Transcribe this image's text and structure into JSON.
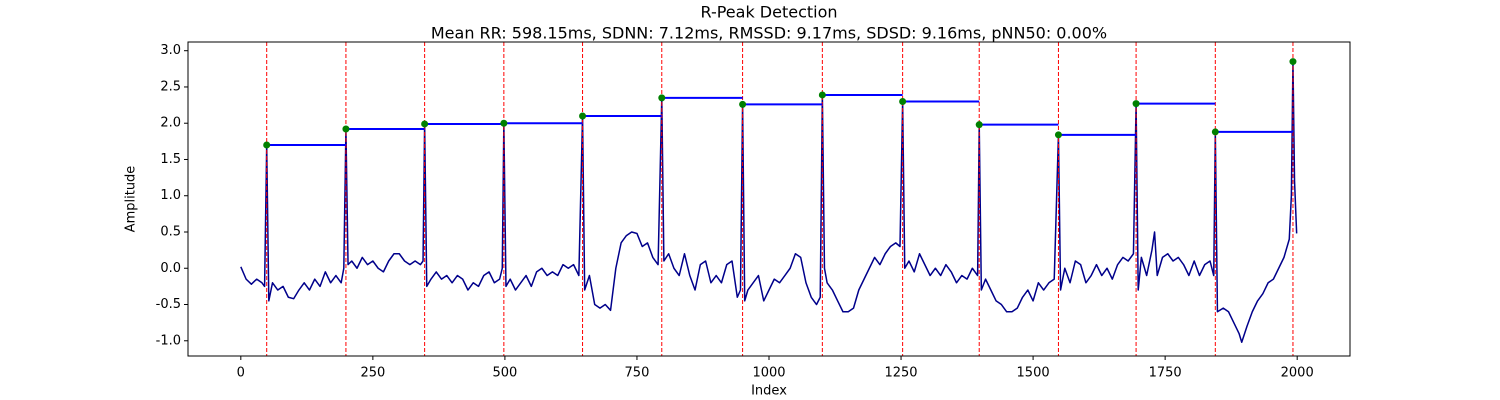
{
  "chart_data": {
    "type": "line",
    "title": "R-Peak Detection",
    "subtitle": "Mean RR: 598.15ms, SDNN: 7.12ms, RMSSD: 9.17ms, SDSD: 9.16ms, pNN50: 0.00%",
    "x_label": "Index",
    "y_label": "Amplitude",
    "xlim": [
      -100,
      2100
    ],
    "ylim": [
      -1.21,
      3.12
    ],
    "xticks": [
      0,
      250,
      500,
      750,
      1000,
      1250,
      1500,
      1750,
      2000
    ],
    "yticks": [
      {
        "value": -1,
        "label": "-1.0"
      },
      -0.5,
      {
        "value": 0,
        "label": "0.0"
      },
      0.5,
      {
        "value": 1,
        "label": "1.0"
      },
      1.5,
      {
        "value": 2,
        "label": "2.0"
      },
      2.5,
      {
        "value": 3,
        "label": "3.0"
      }
    ],
    "signal": {
      "color": "#00008b",
      "x": [
        0,
        10,
        20,
        30,
        40,
        45,
        49,
        53,
        60,
        70,
        80,
        90,
        100,
        110,
        120,
        130,
        140,
        150,
        160,
        170,
        180,
        190,
        195,
        199,
        203,
        210,
        220,
        230,
        240,
        250,
        260,
        270,
        280,
        290,
        300,
        310,
        320,
        330,
        340,
        345,
        348,
        352,
        360,
        370,
        380,
        390,
        400,
        410,
        420,
        430,
        440,
        450,
        460,
        470,
        480,
        490,
        495,
        498,
        502,
        510,
        520,
        530,
        540,
        550,
        560,
        570,
        580,
        590,
        600,
        610,
        620,
        630,
        640,
        647,
        651,
        660,
        670,
        680,
        690,
        700,
        710,
        720,
        730,
        740,
        750,
        760,
        770,
        780,
        790,
        797,
        801,
        810,
        820,
        830,
        840,
        850,
        860,
        870,
        880,
        890,
        900,
        910,
        920,
        930,
        940,
        946,
        950,
        954,
        960,
        970,
        980,
        990,
        1000,
        1010,
        1020,
        1030,
        1040,
        1050,
        1060,
        1070,
        1080,
        1090,
        1097,
        1101,
        1105,
        1110,
        1120,
        1130,
        1140,
        1150,
        1160,
        1170,
        1180,
        1190,
        1200,
        1210,
        1220,
        1230,
        1240,
        1248,
        1253,
        1257,
        1265,
        1275,
        1285,
        1295,
        1305,
        1315,
        1325,
        1335,
        1345,
        1355,
        1365,
        1375,
        1385,
        1395,
        1398,
        1402,
        1410,
        1420,
        1430,
        1440,
        1450,
        1460,
        1470,
        1480,
        1490,
        1500,
        1510,
        1520,
        1530,
        1540,
        1548,
        1552,
        1560,
        1570,
        1580,
        1590,
        1600,
        1610,
        1620,
        1630,
        1640,
        1650,
        1660,
        1670,
        1680,
        1690,
        1695,
        1699,
        1705,
        1715,
        1725,
        1730,
        1735,
        1745,
        1755,
        1765,
        1775,
        1785,
        1795,
        1805,
        1815,
        1825,
        1835,
        1842,
        1845,
        1849,
        1860,
        1870,
        1880,
        1890,
        1895,
        1905,
        1915,
        1925,
        1935,
        1945,
        1955,
        1965,
        1975,
        1985,
        1989,
        1992,
        1995,
        1999
      ],
      "values": [
        0.02,
        -0.15,
        -0.22,
        -0.15,
        -0.2,
        -0.25,
        1.7,
        -0.45,
        -0.2,
        -0.3,
        -0.25,
        -0.4,
        -0.42,
        -0.3,
        -0.2,
        -0.3,
        -0.15,
        -0.25,
        -0.05,
        -0.2,
        -0.1,
        -0.2,
        0.0,
        1.92,
        0.05,
        0.1,
        0.0,
        0.15,
        0.05,
        0.1,
        0.0,
        -0.05,
        0.1,
        0.2,
        0.2,
        0.1,
        0.05,
        0.1,
        0.05,
        0.1,
        1.99,
        -0.25,
        -0.15,
        -0.05,
        -0.15,
        -0.1,
        -0.2,
        -0.1,
        -0.15,
        -0.3,
        -0.2,
        -0.25,
        -0.1,
        -0.05,
        -0.2,
        -0.15,
        0.0,
        2.0,
        -0.25,
        -0.15,
        -0.3,
        -0.2,
        -0.1,
        -0.25,
        -0.05,
        0.0,
        -0.1,
        -0.05,
        -0.1,
        0.05,
        0.0,
        0.05,
        -0.1,
        2.1,
        -0.3,
        -0.1,
        -0.5,
        -0.55,
        -0.5,
        -0.58,
        0.0,
        0.35,
        0.45,
        0.5,
        0.48,
        0.3,
        0.35,
        0.15,
        0.05,
        2.35,
        0.1,
        0.2,
        0.0,
        -0.1,
        0.2,
        -0.1,
        -0.3,
        0.05,
        0.1,
        -0.2,
        -0.1,
        -0.2,
        0.05,
        0.1,
        -0.4,
        -0.3,
        2.26,
        -0.45,
        -0.3,
        -0.2,
        -0.1,
        -0.45,
        -0.3,
        -0.15,
        -0.2,
        -0.1,
        0.0,
        0.2,
        0.15,
        -0.2,
        -0.4,
        -0.5,
        -0.4,
        2.39,
        0.0,
        -0.2,
        -0.3,
        -0.45,
        -0.6,
        -0.6,
        -0.55,
        -0.3,
        -0.15,
        0.0,
        0.15,
        0.05,
        0.2,
        0.3,
        0.35,
        0.3,
        2.3,
        0.0,
        0.1,
        -0.05,
        0.2,
        0.05,
        -0.1,
        0.0,
        -0.1,
        0.05,
        -0.05,
        -0.2,
        -0.1,
        -0.15,
        0.0,
        -0.1,
        1.98,
        -0.3,
        -0.15,
        -0.3,
        -0.45,
        -0.5,
        -0.6,
        -0.6,
        -0.55,
        -0.4,
        -0.3,
        -0.45,
        -0.2,
        -0.3,
        -0.2,
        -0.15,
        1.84,
        -0.3,
        0.0,
        -0.2,
        0.1,
        0.05,
        -0.2,
        -0.1,
        0.05,
        -0.1,
        0.0,
        -0.15,
        0.05,
        0.15,
        0.1,
        0.2,
        2.27,
        -0.3,
        0.15,
        -0.1,
        0.25,
        0.5,
        -0.1,
        0.15,
        0.2,
        0.1,
        0.15,
        0.05,
        -0.1,
        0.1,
        -0.1,
        0.05,
        0.1,
        -0.1,
        1.88,
        -0.6,
        -0.55,
        -0.6,
        -0.75,
        -0.9,
        -1.02,
        -0.8,
        -0.6,
        -0.45,
        -0.35,
        -0.2,
        -0.15,
        0.0,
        0.15,
        0.4,
        1.0,
        2.85,
        1.2,
        0.48
      ]
    },
    "peaks": {
      "color": "#008000",
      "line_color": "#ff0000",
      "rr_color": "#0000ff",
      "x": [
        49,
        199,
        348,
        498,
        647,
        797,
        950,
        1101,
        1253,
        1398,
        1548,
        1695,
        1845,
        1992
      ],
      "values": [
        1.7,
        1.92,
        1.99,
        2.0,
        2.1,
        2.35,
        2.26,
        2.39,
        2.3,
        1.98,
        1.84,
        2.27,
        1.88,
        2.85
      ]
    }
  }
}
